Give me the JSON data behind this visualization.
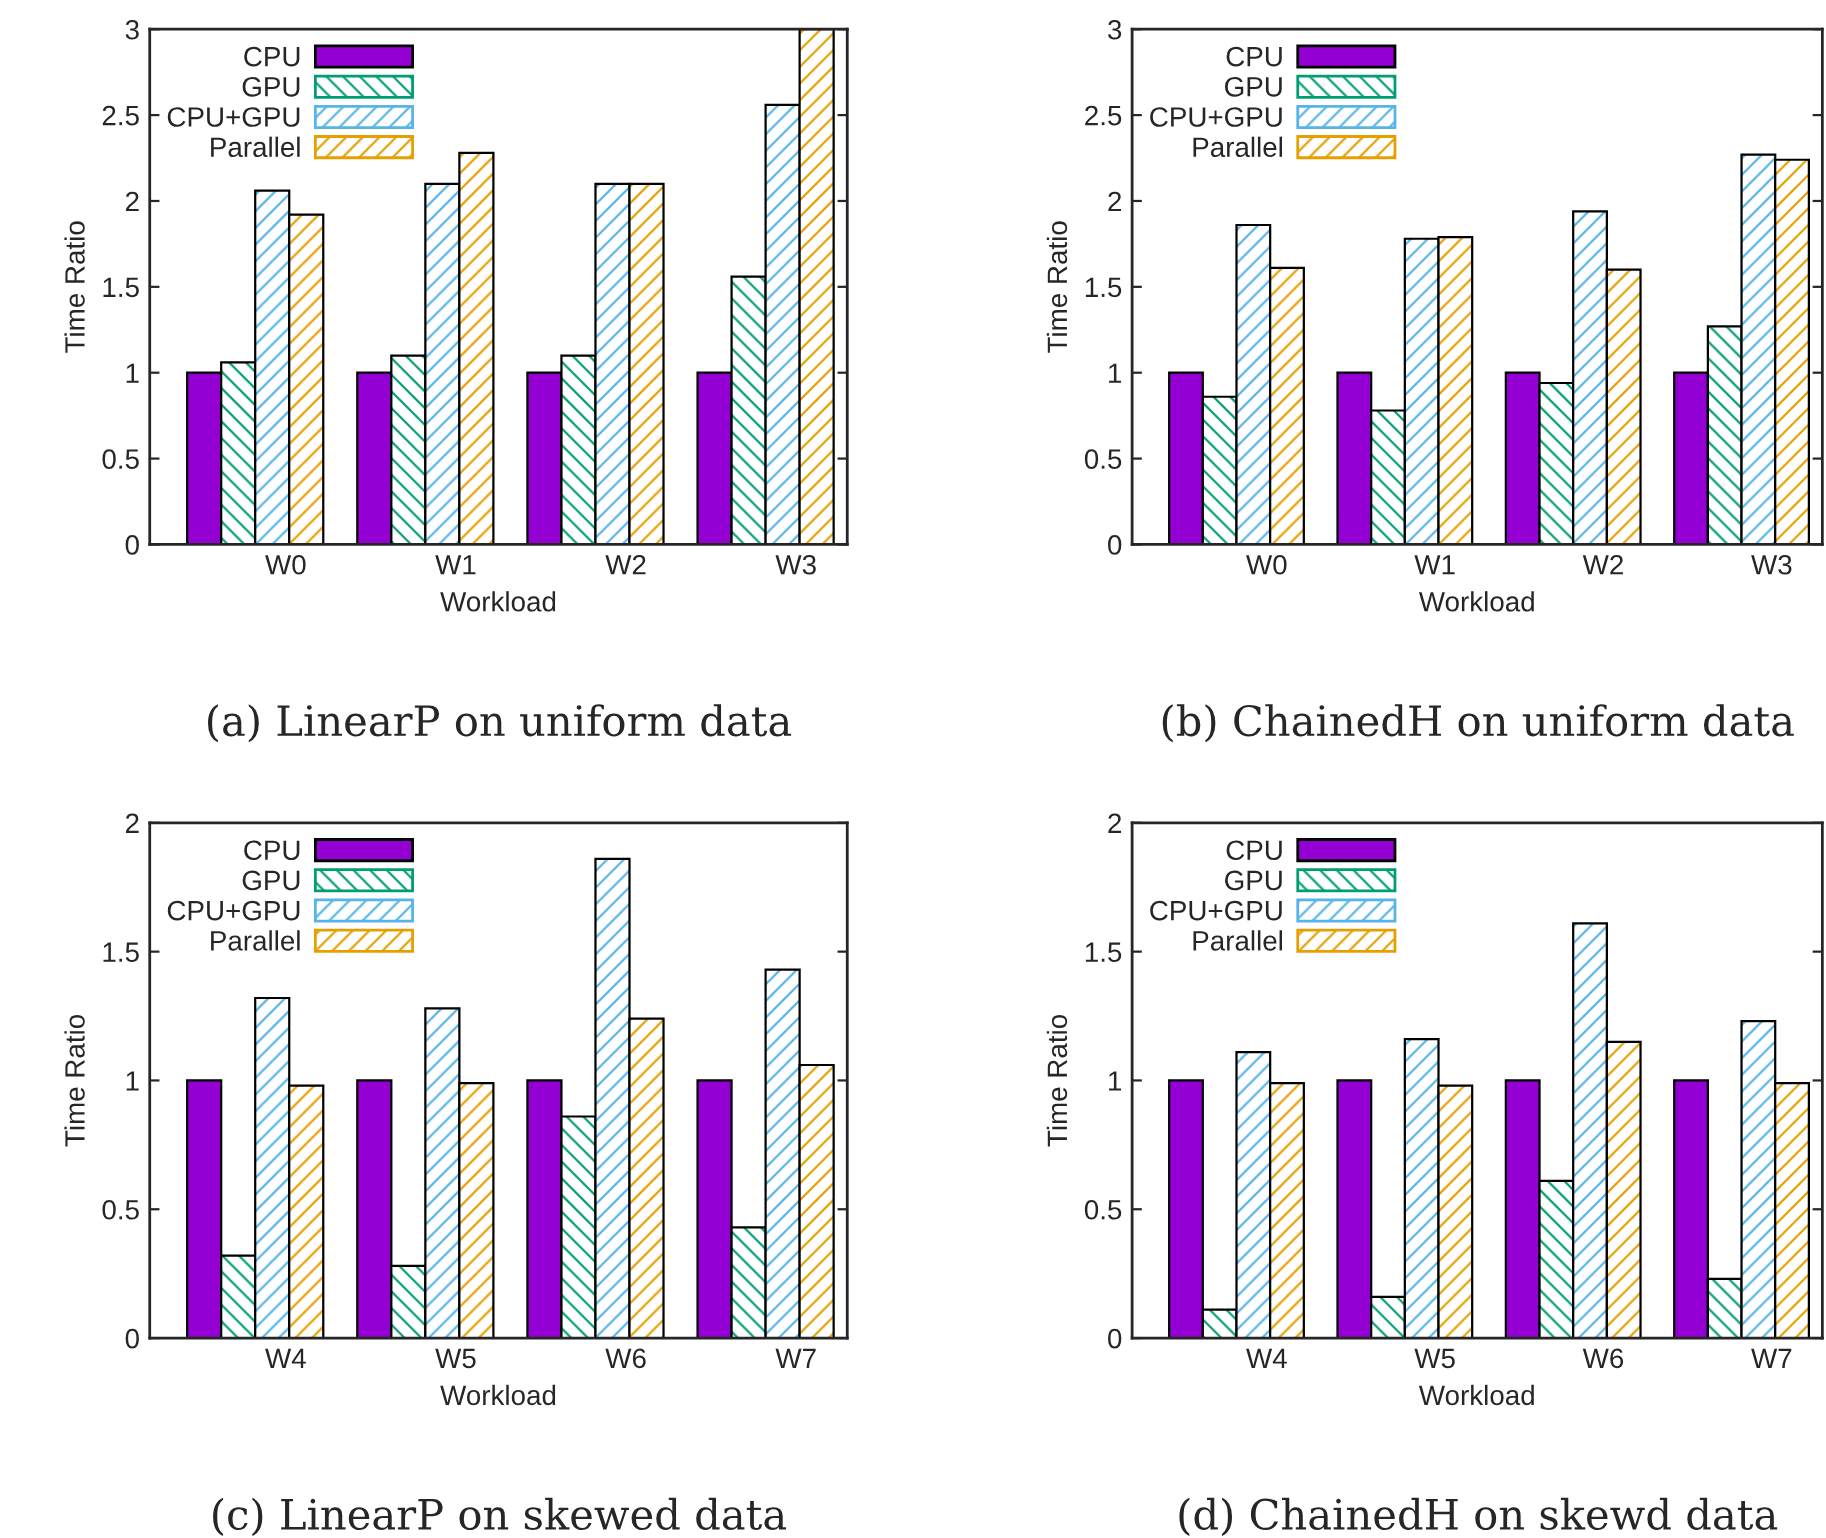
{
  "chart_data": [
    {
      "type": "bar",
      "title": "(a) LinearP on uniform data",
      "xlabel": "Workload",
      "ylabel": "Time Ratio",
      "categories": [
        "W0",
        "W1",
        "W2",
        "W3"
      ],
      "ylim": [
        0,
        3
      ],
      "yticks": [
        0,
        0.5,
        1,
        1.5,
        2,
        2.5,
        3
      ],
      "grid": false,
      "legend": "top left",
      "series": [
        {
          "name": "CPU",
          "color": "#9400d3",
          "values": [
            1,
            1,
            1,
            1
          ]
        },
        {
          "name": "GPU",
          "color": "#009e73",
          "values": [
            1.06,
            1.1,
            1.1,
            1.56
          ]
        },
        {
          "name": "CPU+GPU",
          "color": "#56b4e9",
          "values": [
            2.06,
            2.1,
            2.1,
            2.56
          ]
        },
        {
          "name": "Parallel",
          "color": "#e69f00",
          "values": [
            1.92,
            2.28,
            2.1,
            3.0
          ]
        }
      ]
    },
    {
      "type": "bar",
      "title": "(b) ChainedH on uniform data",
      "xlabel": "Workload",
      "ylabel": "Time Ratio",
      "categories": [
        "W0",
        "W1",
        "W2",
        "W3"
      ],
      "ylim": [
        0,
        3
      ],
      "yticks": [
        0,
        0.5,
        1,
        1.5,
        2,
        2.5,
        3
      ],
      "grid": false,
      "legend": "top left",
      "series": [
        {
          "name": "CPU",
          "color": "#9400d3",
          "values": [
            1,
            1,
            1,
            1
          ]
        },
        {
          "name": "GPU",
          "color": "#009e73",
          "values": [
            0.86,
            0.78,
            0.94,
            1.27
          ]
        },
        {
          "name": "CPU+GPU",
          "color": "#56b4e9",
          "values": [
            1.86,
            1.78,
            1.94,
            2.27
          ]
        },
        {
          "name": "Parallel",
          "color": "#e69f00",
          "values": [
            1.61,
            1.79,
            1.6,
            2.24
          ]
        }
      ]
    },
    {
      "type": "bar",
      "title": "(c) LinearP on skewed data",
      "xlabel": "Workload",
      "ylabel": "Time Ratio",
      "categories": [
        "W4",
        "W5",
        "W6",
        "W7"
      ],
      "ylim": [
        0,
        2
      ],
      "yticks": [
        0,
        0.5,
        1,
        1.5,
        2
      ],
      "grid": false,
      "legend": "top left",
      "series": [
        {
          "name": "CPU",
          "color": "#9400d3",
          "values": [
            1,
            1,
            1,
            1
          ]
        },
        {
          "name": "GPU",
          "color": "#009e73",
          "values": [
            0.32,
            0.28,
            0.86,
            0.43
          ]
        },
        {
          "name": "CPU+GPU",
          "color": "#56b4e9",
          "values": [
            1.32,
            1.28,
            1.86,
            1.43
          ]
        },
        {
          "name": "Parallel",
          "color": "#e69f00",
          "values": [
            0.98,
            0.99,
            1.24,
            1.06
          ]
        }
      ]
    },
    {
      "type": "bar",
      "title": "(d) ChainedH on skewd data",
      "xlabel": "Workload",
      "ylabel": "Time Ratio",
      "categories": [
        "W4",
        "W5",
        "W6",
        "W7"
      ],
      "ylim": [
        0,
        2
      ],
      "yticks": [
        0,
        0.5,
        1,
        1.5,
        2
      ],
      "grid": false,
      "legend": "top left",
      "series": [
        {
          "name": "CPU",
          "color": "#9400d3",
          "values": [
            1,
            1,
            1,
            1
          ]
        },
        {
          "name": "GPU",
          "color": "#009e73",
          "values": [
            0.11,
            0.16,
            0.61,
            0.23
          ]
        },
        {
          "name": "CPU+GPU",
          "color": "#56b4e9",
          "values": [
            1.11,
            1.16,
            1.61,
            1.23
          ]
        },
        {
          "name": "Parallel",
          "color": "#e69f00",
          "values": [
            0.99,
            0.98,
            1.15,
            0.99
          ]
        }
      ]
    }
  ]
}
